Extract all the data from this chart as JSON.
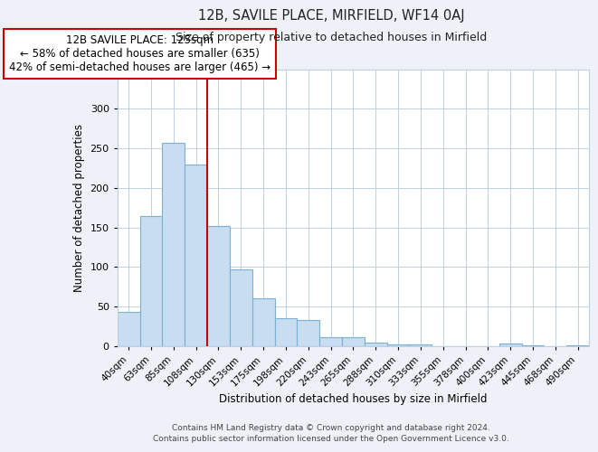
{
  "title": "12B, SAVILE PLACE, MIRFIELD, WF14 0AJ",
  "subtitle": "Size of property relative to detached houses in Mirfield",
  "xlabel": "Distribution of detached houses by size in Mirfield",
  "ylabel": "Number of detached properties",
  "footer_lines": [
    "Contains HM Land Registry data © Crown copyright and database right 2024.",
    "Contains public sector information licensed under the Open Government Licence v3.0."
  ],
  "categories": [
    "40sqm",
    "63sqm",
    "85sqm",
    "108sqm",
    "130sqm",
    "153sqm",
    "175sqm",
    "198sqm",
    "220sqm",
    "243sqm",
    "265sqm",
    "288sqm",
    "310sqm",
    "333sqm",
    "355sqm",
    "378sqm",
    "400sqm",
    "423sqm",
    "445sqm",
    "468sqm",
    "490sqm"
  ],
  "values": [
    44,
    165,
    257,
    230,
    152,
    97,
    61,
    35,
    33,
    11,
    11,
    5,
    2,
    2,
    0,
    0,
    0,
    3,
    1,
    0,
    1
  ],
  "bar_color": "#c8ddf0",
  "bar_edge_color": "#7ab0d4",
  "vline_color": "#cc0000",
  "annotation_box_text": "12B SAVILE PLACE: 125sqm\n← 58% of detached houses are smaller (635)\n42% of semi-detached houses are larger (465) →",
  "ylim": [
    0,
    350
  ],
  "yticks": [
    0,
    50,
    100,
    150,
    200,
    250,
    300,
    350
  ],
  "bg_color": "#eef2f8",
  "plot_bg_color": "#ffffff",
  "grid_color": "#c0d0e0"
}
